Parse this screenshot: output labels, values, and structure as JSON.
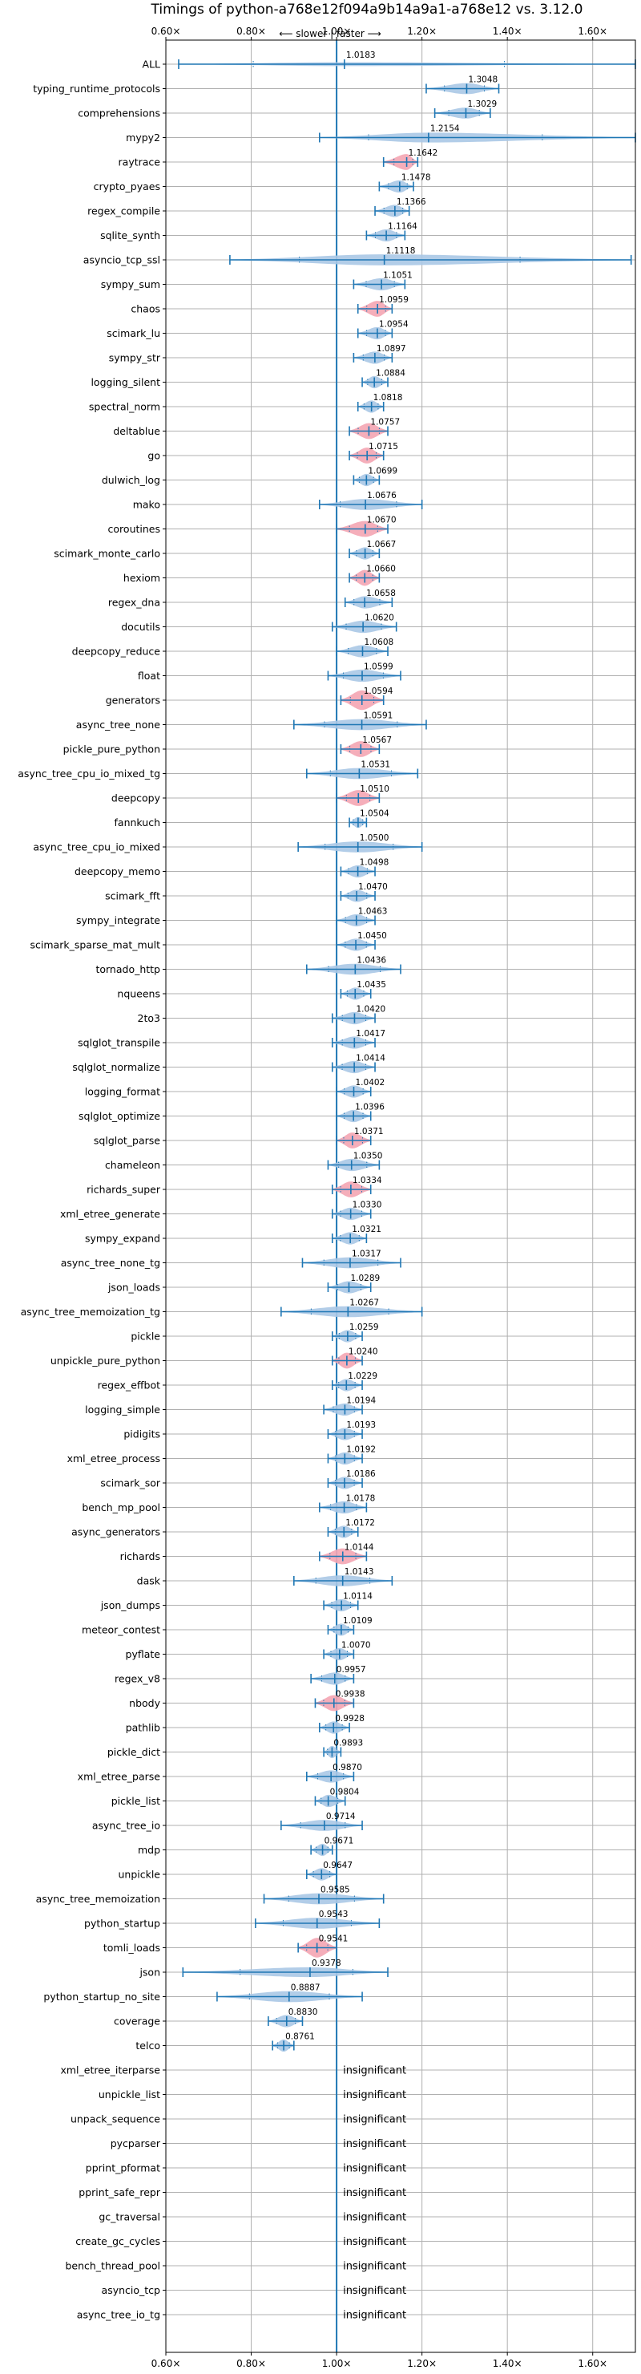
{
  "chart_data": {
    "type": "violin",
    "title": "Timings of python-a768e12f094a9b14a9a1-a768e12 vs. 3.12.0",
    "direction_label": "⟵ slower | faster ⟶",
    "xlim": [
      0.6,
      1.7
    ],
    "xticks": [
      0.6,
      0.8,
      1.0,
      1.2,
      1.4,
      1.6
    ],
    "xtick_labels": [
      "0.60×",
      "0.80×",
      "1.00×",
      "1.20×",
      "1.40×",
      "1.60×"
    ],
    "reference_line": 1.0,
    "insignificant_label": "insignificant",
    "colors": {
      "normal": "#aac8e6",
      "highlight": "#f4a5b2",
      "line": "#1f77b4",
      "grid": "#b0b0b0"
    },
    "rows": [
      {
        "name": "ALL",
        "value": 1.0183,
        "label": "1.0183",
        "min": 0.63,
        "max": 1.7,
        "width": 0.16,
        "highlight": false
      },
      {
        "name": "typing_runtime_protocols",
        "value": 1.3048,
        "label": "1.3048",
        "min": 1.21,
        "max": 1.38,
        "width": 0.45,
        "highlight": false
      },
      {
        "name": "comprehensions",
        "value": 1.3029,
        "label": "1.3029",
        "min": 1.23,
        "max": 1.36,
        "width": 0.45,
        "highlight": false
      },
      {
        "name": "mypy2",
        "value": 1.2154,
        "label": "1.2154",
        "min": 0.96,
        "max": 1.7,
        "width": 0.4,
        "highlight": false
      },
      {
        "name": "raytrace",
        "value": 1.1642,
        "label": "1.1642",
        "min": 1.11,
        "max": 1.19,
        "width": 0.65,
        "highlight": true
      },
      {
        "name": "crypto_pyaes",
        "value": 1.1478,
        "label": "1.1478",
        "min": 1.1,
        "max": 1.18,
        "width": 0.5,
        "highlight": false
      },
      {
        "name": "regex_compile",
        "value": 1.1366,
        "label": "1.1366",
        "min": 1.09,
        "max": 1.17,
        "width": 0.5,
        "highlight": false
      },
      {
        "name": "sqlite_synth",
        "value": 1.1164,
        "label": "1.1164",
        "min": 1.07,
        "max": 1.16,
        "width": 0.5,
        "highlight": false
      },
      {
        "name": "asyncio_tcp_ssl",
        "value": 1.1118,
        "label": "1.1118",
        "min": 0.75,
        "max": 1.69,
        "width": 0.45,
        "highlight": false
      },
      {
        "name": "sympy_sum",
        "value": 1.1051,
        "label": "1.1051",
        "min": 1.04,
        "max": 1.16,
        "width": 0.5,
        "highlight": false
      },
      {
        "name": "chaos",
        "value": 1.0959,
        "label": "1.0959",
        "min": 1.05,
        "max": 1.13,
        "width": 0.65,
        "highlight": true
      },
      {
        "name": "scimark_lu",
        "value": 1.0954,
        "label": "1.0954",
        "min": 1.05,
        "max": 1.13,
        "width": 0.5,
        "highlight": false
      },
      {
        "name": "sympy_str",
        "value": 1.0897,
        "label": "1.0897",
        "min": 1.04,
        "max": 1.13,
        "width": 0.5,
        "highlight": false
      },
      {
        "name": "logging_silent",
        "value": 1.0884,
        "label": "1.0884",
        "min": 1.06,
        "max": 1.12,
        "width": 0.5,
        "highlight": false
      },
      {
        "name": "spectral_norm",
        "value": 1.0818,
        "label": "1.0818",
        "min": 1.05,
        "max": 1.11,
        "width": 0.5,
        "highlight": false
      },
      {
        "name": "deltablue",
        "value": 1.0757,
        "label": "1.0757",
        "min": 1.03,
        "max": 1.12,
        "width": 0.65,
        "highlight": true
      },
      {
        "name": "go",
        "value": 1.0715,
        "label": "1.0715",
        "min": 1.03,
        "max": 1.11,
        "width": 0.65,
        "highlight": true
      },
      {
        "name": "dulwich_log",
        "value": 1.0699,
        "label": "1.0699",
        "min": 1.04,
        "max": 1.1,
        "width": 0.5,
        "highlight": false
      },
      {
        "name": "mako",
        "value": 1.0676,
        "label": "1.0676",
        "min": 0.96,
        "max": 1.2,
        "width": 0.45,
        "highlight": false
      },
      {
        "name": "coroutines",
        "value": 1.067,
        "label": "1.0670",
        "min": 1.0,
        "max": 1.12,
        "width": 0.65,
        "highlight": true
      },
      {
        "name": "scimark_monte_carlo",
        "value": 1.0667,
        "label": "1.0667",
        "min": 1.03,
        "max": 1.1,
        "width": 0.5,
        "highlight": false
      },
      {
        "name": "hexiom",
        "value": 1.066,
        "label": "1.0660",
        "min": 1.03,
        "max": 1.1,
        "width": 0.65,
        "highlight": true
      },
      {
        "name": "regex_dna",
        "value": 1.0658,
        "label": "1.0658",
        "min": 1.02,
        "max": 1.13,
        "width": 0.5,
        "highlight": false
      },
      {
        "name": "docutils",
        "value": 1.062,
        "label": "1.0620",
        "min": 0.99,
        "max": 1.14,
        "width": 0.5,
        "highlight": false
      },
      {
        "name": "deepcopy_reduce",
        "value": 1.0608,
        "label": "1.0608",
        "min": 1.0,
        "max": 1.12,
        "width": 0.5,
        "highlight": false
      },
      {
        "name": "float",
        "value": 1.0599,
        "label": "1.0599",
        "min": 0.98,
        "max": 1.15,
        "width": 0.5,
        "highlight": false
      },
      {
        "name": "generators",
        "value": 1.0594,
        "label": "1.0594",
        "min": 1.01,
        "max": 1.11,
        "width": 0.8,
        "highlight": true
      },
      {
        "name": "async_tree_none",
        "value": 1.0591,
        "label": "1.0591",
        "min": 0.9,
        "max": 1.21,
        "width": 0.45,
        "highlight": false
      },
      {
        "name": "pickle_pure_python",
        "value": 1.0567,
        "label": "1.0567",
        "min": 1.01,
        "max": 1.1,
        "width": 0.65,
        "highlight": true
      },
      {
        "name": "async_tree_cpu_io_mixed_tg",
        "value": 1.0531,
        "label": "1.0531",
        "min": 0.93,
        "max": 1.19,
        "width": 0.45,
        "highlight": false
      },
      {
        "name": "deepcopy",
        "value": 1.051,
        "label": "1.0510",
        "min": 1.0,
        "max": 1.1,
        "width": 0.65,
        "highlight": true
      },
      {
        "name": "fannkuch",
        "value": 1.0504,
        "label": "1.0504",
        "min": 1.03,
        "max": 1.07,
        "width": 0.45,
        "highlight": false
      },
      {
        "name": "async_tree_cpu_io_mixed",
        "value": 1.05,
        "label": "1.0500",
        "min": 0.91,
        "max": 1.2,
        "width": 0.45,
        "highlight": false
      },
      {
        "name": "deepcopy_memo",
        "value": 1.0498,
        "label": "1.0498",
        "min": 1.01,
        "max": 1.09,
        "width": 0.5,
        "highlight": false
      },
      {
        "name": "scimark_fft",
        "value": 1.047,
        "label": "1.0470",
        "min": 1.01,
        "max": 1.09,
        "width": 0.5,
        "highlight": false
      },
      {
        "name": "sympy_integrate",
        "value": 1.0463,
        "label": "1.0463",
        "min": 1.0,
        "max": 1.09,
        "width": 0.5,
        "highlight": false
      },
      {
        "name": "scimark_sparse_mat_mult",
        "value": 1.045,
        "label": "1.0450",
        "min": 1.0,
        "max": 1.09,
        "width": 0.5,
        "highlight": false
      },
      {
        "name": "tornado_http",
        "value": 1.0436,
        "label": "1.0436",
        "min": 0.93,
        "max": 1.15,
        "width": 0.45,
        "highlight": false
      },
      {
        "name": "nqueens",
        "value": 1.0435,
        "label": "1.0435",
        "min": 1.01,
        "max": 1.08,
        "width": 0.5,
        "highlight": false
      },
      {
        "name": "2to3",
        "value": 1.042,
        "label": "1.0420",
        "min": 0.99,
        "max": 1.09,
        "width": 0.5,
        "highlight": false
      },
      {
        "name": "sqlglot_transpile",
        "value": 1.0417,
        "label": "1.0417",
        "min": 0.99,
        "max": 1.09,
        "width": 0.5,
        "highlight": false
      },
      {
        "name": "sqlglot_normalize",
        "value": 1.0414,
        "label": "1.0414",
        "min": 0.99,
        "max": 1.09,
        "width": 0.5,
        "highlight": false
      },
      {
        "name": "logging_format",
        "value": 1.0402,
        "label": "1.0402",
        "min": 1.0,
        "max": 1.08,
        "width": 0.5,
        "highlight": false
      },
      {
        "name": "sqlglot_optimize",
        "value": 1.0396,
        "label": "1.0396",
        "min": 1.0,
        "max": 1.08,
        "width": 0.5,
        "highlight": false
      },
      {
        "name": "sqlglot_parse",
        "value": 1.0371,
        "label": "1.0371",
        "min": 1.0,
        "max": 1.08,
        "width": 0.65,
        "highlight": true
      },
      {
        "name": "chameleon",
        "value": 1.035,
        "label": "1.0350",
        "min": 0.98,
        "max": 1.1,
        "width": 0.5,
        "highlight": false
      },
      {
        "name": "richards_super",
        "value": 1.0334,
        "label": "1.0334",
        "min": 0.99,
        "max": 1.08,
        "width": 0.65,
        "highlight": true
      },
      {
        "name": "xml_etree_generate",
        "value": 1.033,
        "label": "1.0330",
        "min": 0.99,
        "max": 1.08,
        "width": 0.5,
        "highlight": false
      },
      {
        "name": "sympy_expand",
        "value": 1.0321,
        "label": "1.0321",
        "min": 0.99,
        "max": 1.07,
        "width": 0.5,
        "highlight": false
      },
      {
        "name": "async_tree_none_tg",
        "value": 1.0317,
        "label": "1.0317",
        "min": 0.92,
        "max": 1.15,
        "width": 0.45,
        "highlight": false
      },
      {
        "name": "json_loads",
        "value": 1.0289,
        "label": "1.0289",
        "min": 0.98,
        "max": 1.08,
        "width": 0.5,
        "highlight": false
      },
      {
        "name": "async_tree_memoization_tg",
        "value": 1.0267,
        "label": "1.0267",
        "min": 0.87,
        "max": 1.2,
        "width": 0.45,
        "highlight": false
      },
      {
        "name": "pickle",
        "value": 1.0259,
        "label": "1.0259",
        "min": 0.99,
        "max": 1.06,
        "width": 0.5,
        "highlight": false
      },
      {
        "name": "unpickle_pure_python",
        "value": 1.024,
        "label": "1.0240",
        "min": 0.99,
        "max": 1.06,
        "width": 0.65,
        "highlight": true
      },
      {
        "name": "regex_effbot",
        "value": 1.0229,
        "label": "1.0229",
        "min": 0.99,
        "max": 1.06,
        "width": 0.5,
        "highlight": false
      },
      {
        "name": "logging_simple",
        "value": 1.0194,
        "label": "1.0194",
        "min": 0.97,
        "max": 1.06,
        "width": 0.5,
        "highlight": false
      },
      {
        "name": "pidigits",
        "value": 1.0193,
        "label": "1.0193",
        "min": 0.98,
        "max": 1.06,
        "width": 0.5,
        "highlight": false
      },
      {
        "name": "xml_etree_process",
        "value": 1.0192,
        "label": "1.0192",
        "min": 0.98,
        "max": 1.06,
        "width": 0.5,
        "highlight": false
      },
      {
        "name": "scimark_sor",
        "value": 1.0186,
        "label": "1.0186",
        "min": 0.98,
        "max": 1.06,
        "width": 0.5,
        "highlight": false
      },
      {
        "name": "bench_mp_pool",
        "value": 1.0178,
        "label": "1.0178",
        "min": 0.96,
        "max": 1.07,
        "width": 0.5,
        "highlight": false
      },
      {
        "name": "async_generators",
        "value": 1.0172,
        "label": "1.0172",
        "min": 0.98,
        "max": 1.05,
        "width": 0.5,
        "highlight": false
      },
      {
        "name": "richards",
        "value": 1.0144,
        "label": "1.0144",
        "min": 0.96,
        "max": 1.07,
        "width": 0.65,
        "highlight": true
      },
      {
        "name": "dask",
        "value": 1.0143,
        "label": "1.0143",
        "min": 0.9,
        "max": 1.13,
        "width": 0.45,
        "highlight": false
      },
      {
        "name": "json_dumps",
        "value": 1.0114,
        "label": "1.0114",
        "min": 0.97,
        "max": 1.05,
        "width": 0.5,
        "highlight": false
      },
      {
        "name": "meteor_contest",
        "value": 1.0109,
        "label": "1.0109",
        "min": 0.98,
        "max": 1.04,
        "width": 0.5,
        "highlight": false
      },
      {
        "name": "pyflate",
        "value": 1.007,
        "label": "1.0070",
        "min": 0.97,
        "max": 1.04,
        "width": 0.5,
        "highlight": false
      },
      {
        "name": "regex_v8",
        "value": 0.9957,
        "label": "0.9957",
        "min": 0.94,
        "max": 1.04,
        "width": 0.5,
        "highlight": false
      },
      {
        "name": "nbody",
        "value": 0.9938,
        "label": "0.9938",
        "min": 0.95,
        "max": 1.04,
        "width": 0.65,
        "highlight": true
      },
      {
        "name": "pathlib",
        "value": 0.9928,
        "label": "0.9928",
        "min": 0.96,
        "max": 1.03,
        "width": 0.5,
        "highlight": false
      },
      {
        "name": "pickle_dict",
        "value": 0.9893,
        "label": "0.9893",
        "min": 0.97,
        "max": 1.01,
        "width": 0.5,
        "highlight": false
      },
      {
        "name": "xml_etree_parse",
        "value": 0.987,
        "label": "0.9870",
        "min": 0.93,
        "max": 1.04,
        "width": 0.5,
        "highlight": false
      },
      {
        "name": "pickle_list",
        "value": 0.9804,
        "label": "0.9804",
        "min": 0.95,
        "max": 1.02,
        "width": 0.5,
        "highlight": false
      },
      {
        "name": "async_tree_io",
        "value": 0.9714,
        "label": "0.9714",
        "min": 0.87,
        "max": 1.06,
        "width": 0.45,
        "highlight": false
      },
      {
        "name": "mdp",
        "value": 0.9671,
        "label": "0.9671",
        "min": 0.94,
        "max": 0.99,
        "width": 0.5,
        "highlight": false
      },
      {
        "name": "unpickle",
        "value": 0.9647,
        "label": "0.9647",
        "min": 0.93,
        "max": 1.0,
        "width": 0.5,
        "highlight": false
      },
      {
        "name": "async_tree_memoization",
        "value": 0.9585,
        "label": "0.9585",
        "min": 0.83,
        "max": 1.11,
        "width": 0.45,
        "highlight": false
      },
      {
        "name": "python_startup",
        "value": 0.9543,
        "label": "0.9543",
        "min": 0.81,
        "max": 1.1,
        "width": 0.45,
        "highlight": false
      },
      {
        "name": "tomli_loads",
        "value": 0.9541,
        "label": "0.9541",
        "min": 0.91,
        "max": 1.0,
        "width": 0.8,
        "highlight": true
      },
      {
        "name": "json",
        "value": 0.9378,
        "label": "0.9378",
        "min": 0.64,
        "max": 1.12,
        "width": 0.4,
        "highlight": false
      },
      {
        "name": "python_startup_no_site",
        "value": 0.8887,
        "label": "0.8887",
        "min": 0.72,
        "max": 1.06,
        "width": 0.45,
        "highlight": false
      },
      {
        "name": "coverage",
        "value": 0.883,
        "label": "0.8830",
        "min": 0.84,
        "max": 0.92,
        "width": 0.5,
        "highlight": false
      },
      {
        "name": "telco",
        "value": 0.8761,
        "label": "0.8761",
        "min": 0.85,
        "max": 0.9,
        "width": 0.5,
        "highlight": false
      },
      {
        "name": "xml_etree_iterparse",
        "insignificant": true
      },
      {
        "name": "unpickle_list",
        "insignificant": true
      },
      {
        "name": "unpack_sequence",
        "insignificant": true
      },
      {
        "name": "pycparser",
        "insignificant": true
      },
      {
        "name": "pprint_pformat",
        "insignificant": true
      },
      {
        "name": "pprint_safe_repr",
        "insignificant": true
      },
      {
        "name": "gc_traversal",
        "insignificant": true
      },
      {
        "name": "create_gc_cycles",
        "insignificant": true
      },
      {
        "name": "bench_thread_pool",
        "insignificant": true
      },
      {
        "name": "asyncio_tcp",
        "insignificant": true
      },
      {
        "name": "async_tree_io_tg",
        "insignificant": true
      }
    ]
  }
}
